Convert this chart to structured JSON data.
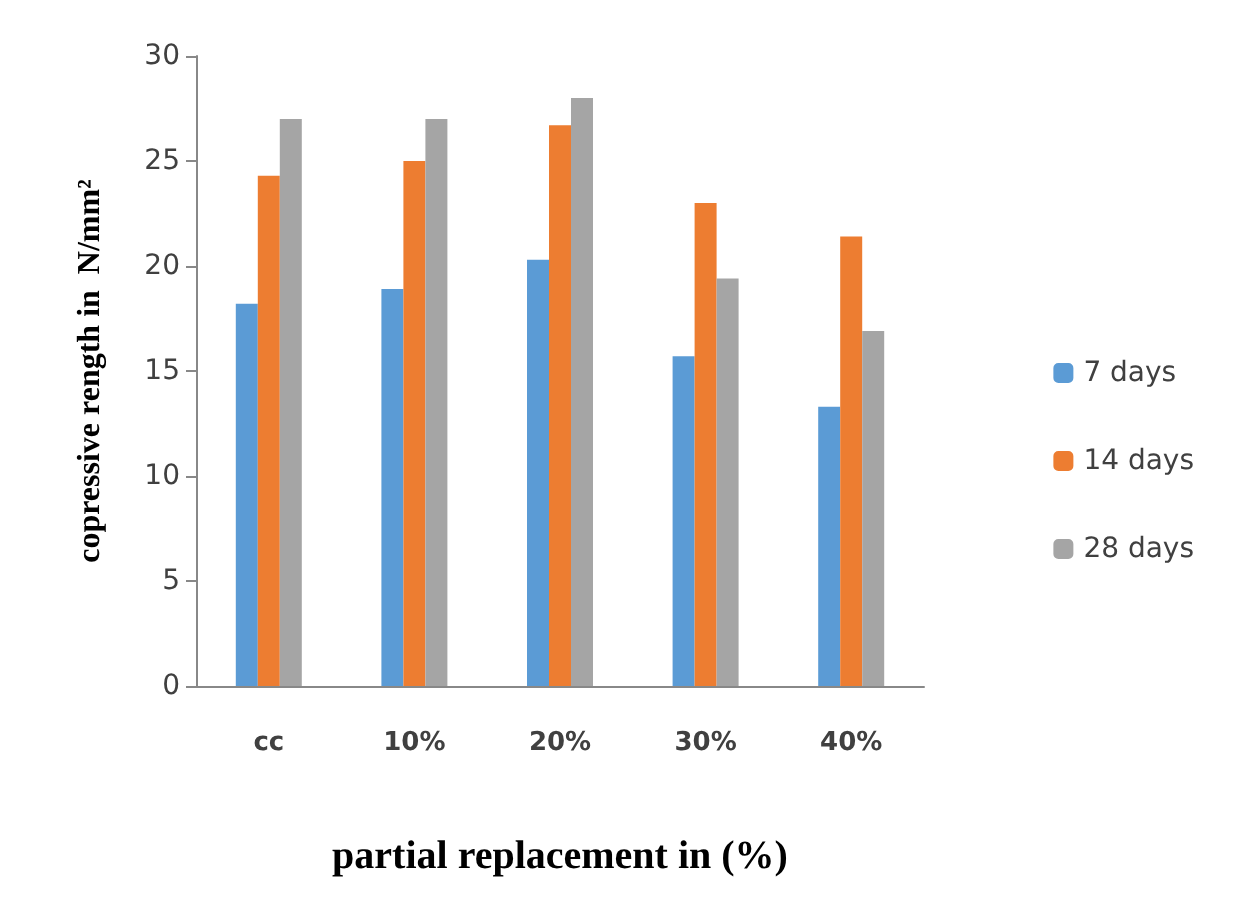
{
  "chart_data": {
    "type": "bar",
    "xlabel": "partial replacement in (%)",
    "ylabel": "copressive rength in  N/mm²",
    "categories": [
      "cc",
      "10%",
      "20%",
      "30%",
      "40%"
    ],
    "series": [
      {
        "name": "7 days",
        "color": "#5b9bd5",
        "values": [
          18.2,
          18.9,
          20.3,
          15.7,
          13.3
        ]
      },
      {
        "name": "14 days",
        "color": "#ed7d31",
        "values": [
          24.3,
          25,
          26.7,
          23,
          21.4
        ]
      },
      {
        "name": "28 days",
        "color": "#a5a5a5",
        "values": [
          27,
          27,
          28,
          19.4,
          16.9
        ]
      }
    ],
    "ylim": [
      0,
      30
    ],
    "yticks": [
      0,
      5,
      10,
      15,
      20,
      25,
      30
    ],
    "grid": false,
    "legend": "right"
  }
}
